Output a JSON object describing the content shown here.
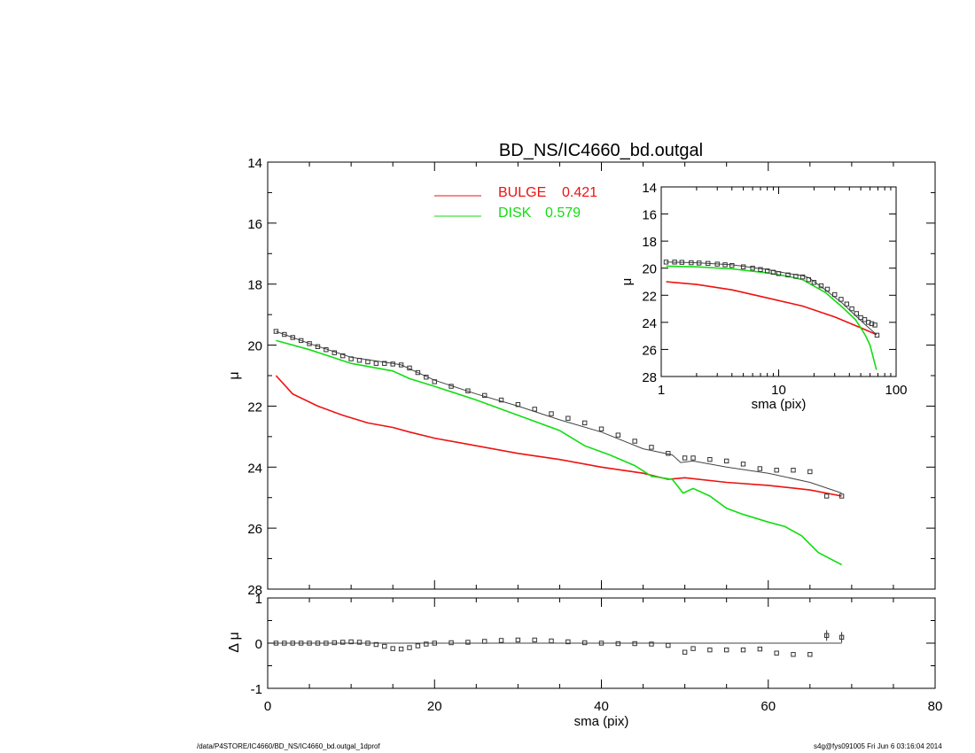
{
  "colors": {
    "bulge": "#ee1111",
    "disk": "#11dd11",
    "model": "#444444",
    "data": "#333333",
    "axis": "#000000"
  },
  "footer": {
    "left": "/data/P4STORE/IC4660/BD_NS/IC4660_bd.outgal_1dprof",
    "right": "s4g@fys091005  Fri Jun  6 03:16:04 2014"
  },
  "chart_data": [
    {
      "id": "main",
      "type": "line",
      "title": "BD_NS/IC4660_bd.outgal",
      "xlabel": "",
      "ylabel": "μ",
      "xlim": [
        0,
        80
      ],
      "ylim": [
        28,
        14
      ],
      "yticks": [
        "14",
        "16",
        "18",
        "20",
        "22",
        "24",
        "26",
        "28"
      ],
      "legend": [
        {
          "label": "BULGE",
          "value": "0.421",
          "color": "#ee1111"
        },
        {
          "label": "DISK",
          "value": "0.579",
          "color": "#11dd11"
        }
      ],
      "series": [
        {
          "name": "BULGE",
          "color": "#ee1111",
          "x": [
            1,
            3,
            6,
            9,
            12,
            15,
            17,
            20,
            25,
            30,
            35,
            40,
            45,
            48,
            50,
            55,
            60,
            65,
            68.8
          ],
          "y": [
            21.0,
            21.6,
            22.0,
            22.3,
            22.55,
            22.7,
            22.85,
            23.05,
            23.3,
            23.55,
            23.75,
            24.0,
            24.2,
            24.4,
            24.35,
            24.5,
            24.6,
            24.75,
            24.95
          ]
        },
        {
          "name": "DISK",
          "color": "#11dd11",
          "x": [
            1,
            5,
            10,
            15,
            17,
            20,
            25,
            30,
            35,
            38,
            41,
            44,
            46,
            48.5,
            49.8,
            51,
            53,
            55,
            57,
            60,
            62,
            64,
            66,
            68.8
          ],
          "y": [
            19.85,
            20.15,
            20.6,
            20.85,
            21.1,
            21.35,
            21.8,
            22.3,
            22.8,
            23.3,
            23.6,
            23.95,
            24.3,
            24.4,
            24.85,
            24.7,
            24.95,
            25.35,
            25.55,
            25.8,
            25.95,
            26.25,
            26.8,
            27.2
          ]
        },
        {
          "name": "MODEL",
          "color": "#444444",
          "x": [
            1,
            5,
            10,
            15,
            16,
            18,
            20,
            25,
            30,
            35,
            40,
            45,
            48.5,
            49.5,
            51,
            55,
            60,
            65,
            68.8
          ],
          "y": [
            19.55,
            19.95,
            20.4,
            20.6,
            20.65,
            20.9,
            21.15,
            21.6,
            22.0,
            22.45,
            22.85,
            23.4,
            23.6,
            23.85,
            23.8,
            24.0,
            24.2,
            24.5,
            24.85
          ]
        },
        {
          "name": "DATA",
          "color": "#333333",
          "marker": "square",
          "x": [
            1,
            2,
            3,
            4,
            5,
            6,
            7,
            8,
            9,
            10,
            11,
            12,
            13,
            14,
            15,
            16,
            17,
            18,
            19,
            20,
            22,
            24,
            26,
            28,
            30,
            32,
            34,
            36,
            38,
            40,
            42,
            44,
            46,
            48,
            50,
            51,
            53,
            55,
            57,
            59,
            61,
            63,
            65,
            67,
            68.8
          ],
          "y": [
            19.55,
            19.65,
            19.75,
            19.85,
            19.95,
            20.05,
            20.15,
            20.25,
            20.35,
            20.45,
            20.5,
            20.55,
            20.6,
            20.6,
            20.62,
            20.65,
            20.75,
            20.9,
            21.05,
            21.2,
            21.35,
            21.5,
            21.65,
            21.8,
            21.95,
            22.1,
            22.25,
            22.4,
            22.55,
            22.75,
            22.95,
            23.15,
            23.35,
            23.55,
            23.7,
            23.7,
            23.75,
            23.8,
            23.9,
            24.05,
            24.1,
            24.1,
            24.15,
            24.95,
            24.95
          ]
        }
      ]
    },
    {
      "id": "residual",
      "type": "scatter",
      "xlabel": "sma (pix)",
      "ylabel": "Δ μ",
      "xlim": [
        0,
        80
      ],
      "ylim": [
        -1,
        1
      ],
      "xticks": [
        "0",
        "20",
        "40",
        "60",
        "80"
      ],
      "yticks": [
        "1",
        "0",
        "-1"
      ],
      "reference_line": {
        "y": 0,
        "x_range": [
          1,
          68.8
        ]
      },
      "series": [
        {
          "name": "RESIDUAL",
          "color": "#333333",
          "marker": "square",
          "x": [
            1,
            2,
            3,
            4,
            5,
            6,
            7,
            8,
            9,
            10,
            11,
            12,
            13,
            14,
            15,
            16,
            17,
            18,
            19,
            20,
            22,
            24,
            26,
            28,
            30,
            32,
            34,
            36,
            38,
            40,
            42,
            44,
            46,
            48,
            50,
            51,
            53,
            55,
            57,
            59,
            61,
            63,
            65,
            67,
            68.8
          ],
          "y": [
            0.0,
            0.0,
            0.0,
            0.0,
            0.0,
            0.0,
            0.0,
            0.01,
            0.02,
            0.03,
            0.02,
            0.0,
            -0.03,
            -0.07,
            -0.12,
            -0.13,
            -0.1,
            -0.06,
            -0.02,
            0.0,
            0.01,
            0.02,
            0.04,
            0.06,
            0.07,
            0.07,
            0.05,
            0.03,
            0.01,
            0.0,
            -0.01,
            -0.01,
            -0.02,
            -0.05,
            -0.2,
            -0.12,
            -0.15,
            -0.15,
            -0.15,
            -0.13,
            -0.22,
            -0.25,
            -0.25,
            0.17,
            0.13
          ]
        }
      ]
    },
    {
      "id": "inset",
      "type": "line",
      "xlabel": "sma (pix)",
      "ylabel": "μ",
      "xscale": "log",
      "xlim": [
        1,
        100
      ],
      "ylim": [
        28,
        14
      ],
      "xticks": [
        "1",
        "10",
        "100"
      ],
      "yticks": [
        "14",
        "16",
        "18",
        "20",
        "22",
        "24",
        "26",
        "28"
      ],
      "series": [
        {
          "name": "BULGE",
          "color": "#ee1111",
          "x": [
            1.1,
            2,
            4,
            8,
            16,
            30,
            50,
            68
          ],
          "y": [
            21.0,
            21.2,
            21.6,
            22.2,
            22.8,
            23.6,
            24.4,
            24.9
          ]
        },
        {
          "name": "DISK",
          "color": "#11dd11",
          "x": [
            1.1,
            2,
            4,
            8,
            12,
            16,
            25,
            35,
            45,
            50,
            55,
            60,
            68
          ],
          "y": [
            19.85,
            19.9,
            20.05,
            20.35,
            20.6,
            20.85,
            21.8,
            22.9,
            23.8,
            24.4,
            25.0,
            25.7,
            27.5
          ]
        },
        {
          "name": "MODEL",
          "color": "#444444",
          "x": [
            1.1,
            2,
            4,
            8,
            12,
            16,
            18,
            25,
            35,
            45,
            55,
            68
          ],
          "y": [
            19.55,
            19.6,
            19.75,
            20.1,
            20.4,
            20.55,
            20.7,
            21.6,
            22.6,
            23.5,
            24.2,
            24.9
          ]
        },
        {
          "name": "DATA",
          "color": "#333333",
          "marker": "square",
          "x": [
            1.1,
            1.3,
            1.5,
            1.8,
            2.1,
            2.5,
            3,
            3.5,
            4,
            5,
            6,
            7,
            8,
            9,
            10,
            12,
            14,
            16,
            18,
            20,
            23,
            26,
            30,
            34,
            38,
            42,
            46,
            50,
            54,
            58,
            62,
            66,
            68.8
          ],
          "y": [
            19.55,
            19.55,
            19.57,
            19.6,
            19.62,
            19.65,
            19.7,
            19.75,
            19.8,
            19.9,
            20.0,
            20.1,
            20.2,
            20.3,
            20.4,
            20.5,
            20.6,
            20.65,
            20.85,
            21.05,
            21.3,
            21.55,
            21.95,
            22.3,
            22.65,
            23.0,
            23.35,
            23.65,
            23.8,
            24.0,
            24.1,
            24.2,
            24.95
          ]
        }
      ]
    }
  ]
}
